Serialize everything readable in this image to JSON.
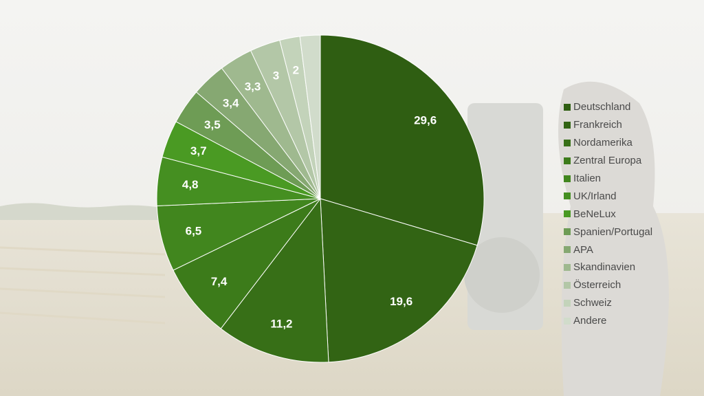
{
  "chart_data": {
    "type": "pie",
    "categories": [
      "Deutschland",
      "Frankreich",
      "Nordamerika",
      "Zentral Europa",
      "Italien",
      "UK/Irland",
      "BeNeLux",
      "Spanien/Portugal",
      "APA",
      "Skandinavien",
      "Österreich",
      "Schweiz",
      "Andere"
    ],
    "values": [
      29.6,
      19.6,
      11.2,
      7.4,
      6.5,
      4.8,
      3.7,
      3.5,
      3.4,
      3.3,
      3,
      2,
      2
    ],
    "value_labels": [
      "29,6",
      "19,6",
      "11,2",
      "7,4",
      "6,5",
      "4,8",
      "3,7",
      "3,5",
      "3,4",
      "3,3",
      "3",
      "2",
      ""
    ],
    "colors": [
      "#2f5e12",
      "#326414",
      "#376f17",
      "#3c7b1a",
      "#41861e",
      "#458f21",
      "#4a9a23",
      "#6e9c55",
      "#86a872",
      "#9fb98f",
      "#b3c7a7",
      "#c3d3ba",
      "#d1dccb"
    ],
    "legend_position": "right",
    "title": ""
  },
  "legend": {
    "items": [
      "Deutschland",
      "Frankreich",
      "Nordamerika",
      "Zentral Europa",
      "Italien",
      "UK/Irland",
      "BeNeLux",
      "Spanien/Portugal",
      "APA",
      "Skandinavien",
      "Österreich",
      "Schweiz",
      "Andere"
    ]
  }
}
